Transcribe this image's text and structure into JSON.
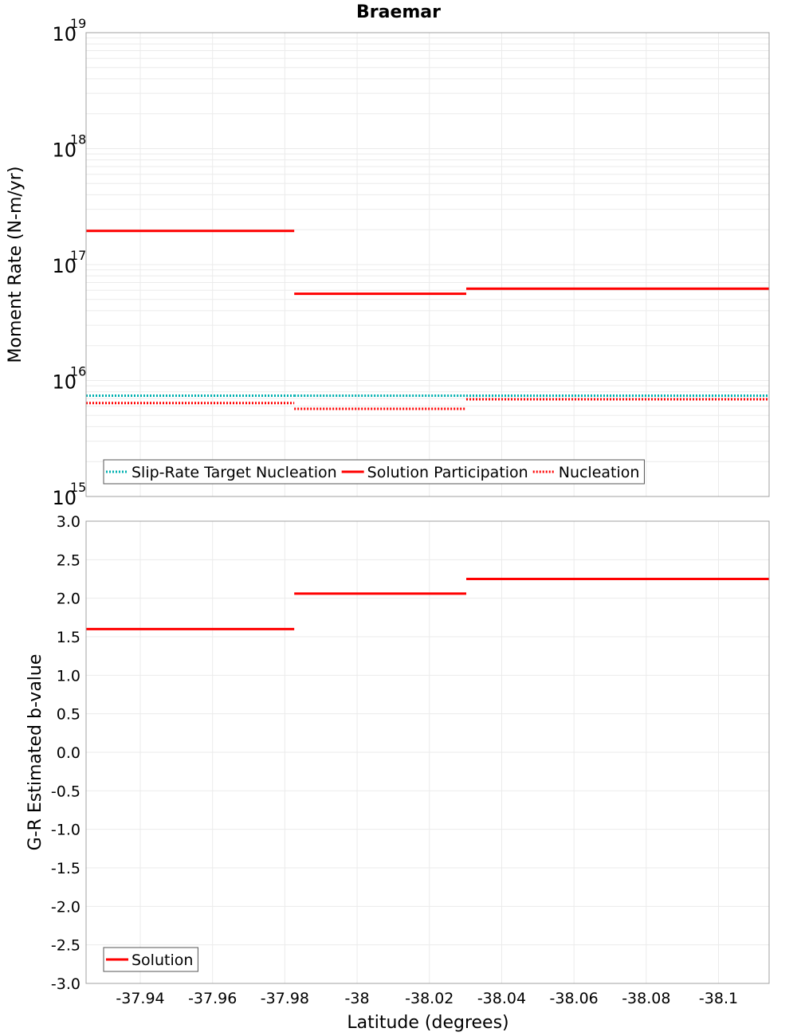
{
  "chart_data": [
    {
      "type": "line",
      "title": "Braemar",
      "xlabel": "Latitude (degrees)",
      "ylabel": "Moment Rate (N-m/yr)",
      "yscale": "log",
      "xlim": [
        -37.925,
        -38.114
      ],
      "ylim": [
        1000000000000000.0,
        1e+19
      ],
      "y_ticks": [
        {
          "base": "10",
          "exp": "15"
        },
        {
          "base": "10",
          "exp": "16"
        },
        {
          "base": "10",
          "exp": "17"
        },
        {
          "base": "10",
          "exp": "18"
        },
        {
          "base": "10",
          "exp": "19"
        }
      ],
      "grid": true,
      "legend_position": "bottom-left",
      "series": [
        {
          "name": "Slip-Rate Target Nucleation",
          "color": "#00b0b0",
          "style": "dotted",
          "segments": [
            [
              -37.925,
              -37.9826,
              7400000000000000.0
            ],
            [
              -37.9826,
              -38.0302,
              7400000000000000.0
            ],
            [
              -38.0302,
              -38.114,
              7400000000000000.0
            ]
          ]
        },
        {
          "name": "Solution Participation",
          "color": "#ff0000",
          "style": "solid",
          "segments": [
            [
              -37.925,
              -37.9826,
              1.95e+17
            ],
            [
              -37.9826,
              -38.0302,
              5.6e+16
            ],
            [
              -38.0302,
              -38.114,
              6.2e+16
            ]
          ]
        },
        {
          "name": "Nucleation",
          "color": "#ff0000",
          "style": "dotted",
          "segments": [
            [
              -37.925,
              -37.9826,
              6400000000000000.0
            ],
            [
              -37.9826,
              -38.0302,
              5700000000000000.0
            ],
            [
              -38.0302,
              -38.114,
              6900000000000000.0
            ]
          ]
        }
      ]
    },
    {
      "type": "line",
      "xlabel": "Latitude (degrees)",
      "ylabel": "G-R Estimated b-value",
      "xlim": [
        -37.925,
        -38.114
      ],
      "ylim": [
        -3.0,
        3.0
      ],
      "y_ticks": [
        "3.0",
        "2.5",
        "2.0",
        "1.5",
        "1.0",
        "0.5",
        "0.0",
        "-0.5",
        "-1.0",
        "-1.5",
        "-2.0",
        "-2.5",
        "-3.0"
      ],
      "x_ticks": [
        "-37.94",
        "-37.96",
        "-37.98",
        "-38",
        "-38.02",
        "-38.04",
        "-38.06",
        "-38.08",
        "-38.1"
      ],
      "grid": true,
      "legend_position": "bottom-left",
      "series": [
        {
          "name": "Solution",
          "color": "#ff0000",
          "style": "solid",
          "segments": [
            [
              -37.925,
              -37.9826,
              1.6
            ],
            [
              -37.9826,
              -38.0302,
              2.06
            ],
            [
              -38.0302,
              -38.114,
              2.25
            ]
          ]
        }
      ]
    }
  ]
}
